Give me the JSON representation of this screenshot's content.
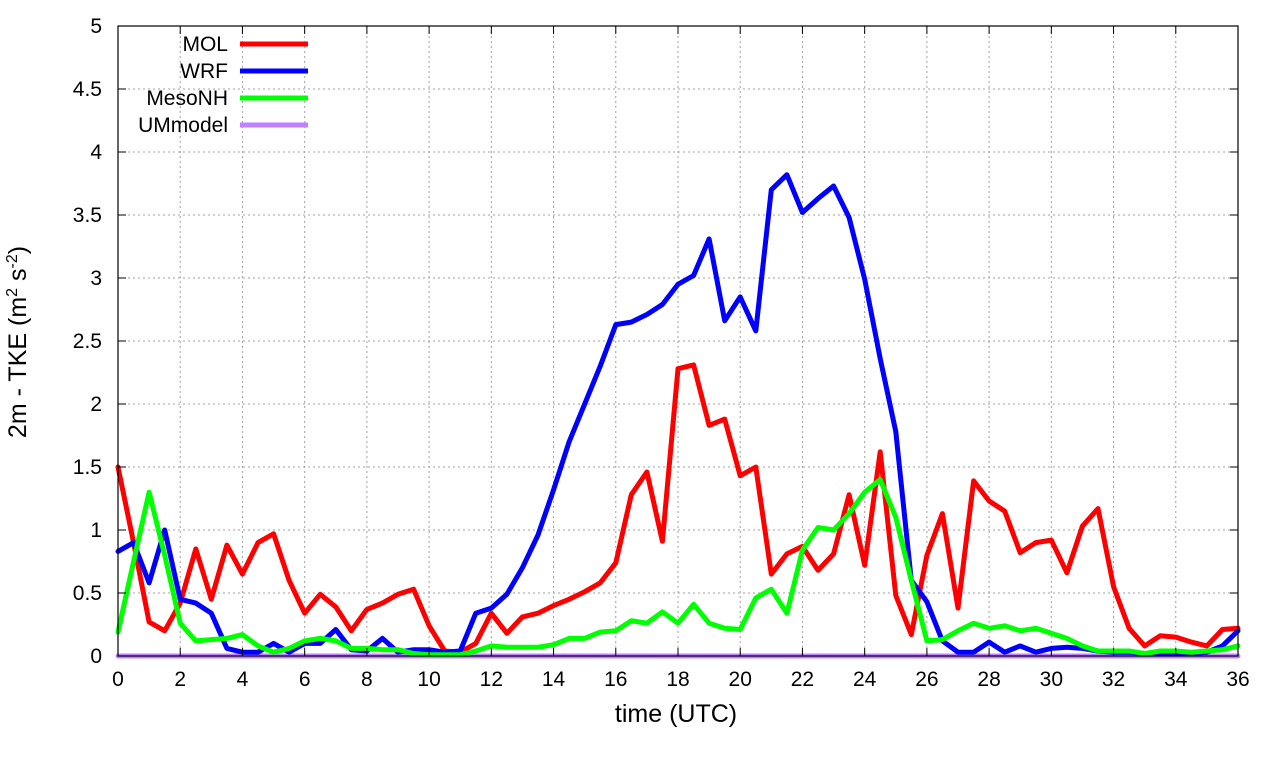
{
  "chart_data": {
    "type": "line",
    "xlabel": "time (UTC)",
    "ylabel": "2m - TKE (m",
    "ylabel_sup1": "2",
    "ylabel_mid": " s",
    "ylabel_sup2": "-2",
    "ylabel_end": ")",
    "xlim": [
      0,
      36
    ],
    "ylim": [
      0,
      5
    ],
    "xticks": [
      "0",
      "2",
      "4",
      "6",
      "8",
      "10",
      "12",
      "14",
      "16",
      "18",
      "20",
      "22",
      "24",
      "26",
      "28",
      "30",
      "32",
      "34",
      "36"
    ],
    "yticks": [
      "0",
      "0.5",
      "1",
      "1.5",
      "2",
      "2.5",
      "3",
      "3.5",
      "4",
      "4.5",
      "5"
    ],
    "grid": true,
    "legend_position": "top-left",
    "series": [
      {
        "name": "MOL",
        "color": "#ff0000",
        "x": [
          0,
          0.5,
          1,
          1.5,
          2,
          2.5,
          3,
          3.5,
          4,
          4.5,
          5,
          5.5,
          6,
          6.5,
          7,
          7.5,
          8,
          8.5,
          9,
          9.5,
          10,
          10.5,
          11,
          11.5,
          12,
          12.5,
          13,
          13.5,
          14,
          14.5,
          15,
          15.5,
          16,
          16.5,
          17,
          17.5,
          18,
          18.5,
          19,
          19.5,
          20,
          20.5,
          21,
          21.5,
          22,
          22.5,
          23,
          23.5,
          24,
          24.5,
          25,
          25.5,
          26,
          26.5,
          27,
          27.5,
          28,
          28.5,
          29,
          29.5,
          30,
          30.5,
          31,
          31.5,
          32,
          32.5,
          33,
          33.5,
          34,
          34.5,
          35,
          35.5,
          36
        ],
        "y": [
          1.5,
          0.9,
          0.27,
          0.2,
          0.42,
          0.85,
          0.45,
          0.88,
          0.65,
          0.9,
          0.97,
          0.6,
          0.34,
          0.49,
          0.39,
          0.2,
          0.37,
          0.42,
          0.49,
          0.53,
          0.24,
          0.04,
          0.03,
          0.1,
          0.34,
          0.18,
          0.31,
          0.34,
          0.4,
          0.45,
          0.51,
          0.58,
          0.74,
          1.28,
          1.46,
          0.91,
          2.28,
          2.31,
          1.83,
          1.88,
          1.43,
          1.5,
          0.65,
          0.81,
          0.87,
          0.68,
          0.81,
          1.28,
          0.72,
          1.62,
          0.48,
          0.17,
          0.8,
          1.13,
          0.38,
          1.39,
          1.23,
          1.15,
          0.82,
          0.9,
          0.92,
          0.66,
          1.03,
          1.17,
          0.55,
          0.22,
          0.08,
          0.16,
          0.15,
          0.11,
          0.08,
          0.21,
          0.22
        ]
      },
      {
        "name": "WRF",
        "color": "#0000ff",
        "x": [
          0,
          0.5,
          1,
          1.5,
          2,
          2.5,
          3,
          3.5,
          4,
          4.5,
          5,
          5.5,
          6,
          6.5,
          7,
          7.5,
          8,
          8.5,
          9,
          9.5,
          10,
          10.5,
          11,
          11.5,
          12,
          12.5,
          13,
          13.5,
          14,
          14.5,
          15,
          15.5,
          16,
          16.5,
          17,
          17.5,
          18,
          18.5,
          19,
          19.5,
          20,
          20.5,
          21,
          21.5,
          22,
          22.5,
          23,
          23.5,
          24,
          24.5,
          25,
          25.5,
          26,
          26.5,
          27,
          27.5,
          28,
          28.5,
          29,
          29.5,
          30,
          30.5,
          31,
          31.5,
          32,
          32.5,
          33,
          33.5,
          34,
          34.5,
          35,
          35.5,
          36
        ],
        "y": [
          0.83,
          0.9,
          0.58,
          1.0,
          0.45,
          0.42,
          0.34,
          0.06,
          0.03,
          0.03,
          0.1,
          0.03,
          0.1,
          0.1,
          0.21,
          0.05,
          0.04,
          0.14,
          0.03,
          0.05,
          0.05,
          0.03,
          0.04,
          0.34,
          0.38,
          0.49,
          0.7,
          0.96,
          1.32,
          1.7,
          2.0,
          2.3,
          2.63,
          2.65,
          2.71,
          2.79,
          2.95,
          3.02,
          3.31,
          2.66,
          2.85,
          2.58,
          3.7,
          3.82,
          3.52,
          3.63,
          3.73,
          3.48,
          2.99,
          2.36,
          1.78,
          0.6,
          0.43,
          0.12,
          0.03,
          0.03,
          0.11,
          0.03,
          0.08,
          0.03,
          0.06,
          0.07,
          0.06,
          0.04,
          0.03,
          0.03,
          0.02,
          0.02,
          0.02,
          0.02,
          0.03,
          0.08,
          0.2
        ]
      },
      {
        "name": "MesoNH",
        "color": "#00ff00",
        "x": [
          0,
          0.5,
          1,
          1.5,
          2,
          2.5,
          3,
          3.5,
          4,
          4.5,
          5,
          5.5,
          6,
          6.5,
          7,
          7.5,
          8,
          8.5,
          9,
          9.5,
          10,
          10.5,
          11,
          11.5,
          12,
          12.5,
          13,
          13.5,
          14,
          14.5,
          15,
          15.5,
          16,
          16.5,
          17,
          17.5,
          18,
          18.5,
          19,
          19.5,
          20,
          20.5,
          21,
          21.5,
          22,
          22.5,
          23,
          23.5,
          24,
          24.5,
          25,
          25.5,
          26,
          26.5,
          27,
          27.5,
          28,
          28.5,
          29,
          29.5,
          30,
          30.5,
          31,
          31.5,
          32,
          32.5,
          33,
          33.5,
          34,
          34.5,
          35,
          35.5,
          36
        ],
        "y": [
          0.19,
          0.75,
          1.3,
          0.8,
          0.26,
          0.12,
          0.13,
          0.14,
          0.17,
          0.08,
          0.03,
          0.06,
          0.12,
          0.14,
          0.12,
          0.06,
          0.06,
          0.05,
          0.05,
          0.02,
          0.01,
          0.01,
          0.01,
          0.04,
          0.08,
          0.07,
          0.07,
          0.07,
          0.09,
          0.14,
          0.14,
          0.19,
          0.2,
          0.28,
          0.26,
          0.35,
          0.26,
          0.41,
          0.26,
          0.22,
          0.21,
          0.46,
          0.53,
          0.34,
          0.84,
          1.02,
          1.0,
          1.13,
          1.3,
          1.4,
          1.1,
          0.6,
          0.12,
          0.13,
          0.2,
          0.26,
          0.22,
          0.24,
          0.2,
          0.22,
          0.18,
          0.14,
          0.08,
          0.04,
          0.04,
          0.04,
          0.02,
          0.04,
          0.04,
          0.03,
          0.04,
          0.05,
          0.08
        ]
      },
      {
        "name": "UMmodel",
        "color": "#c080ff",
        "x": [
          0,
          36
        ],
        "y": [
          0,
          0
        ]
      }
    ]
  }
}
